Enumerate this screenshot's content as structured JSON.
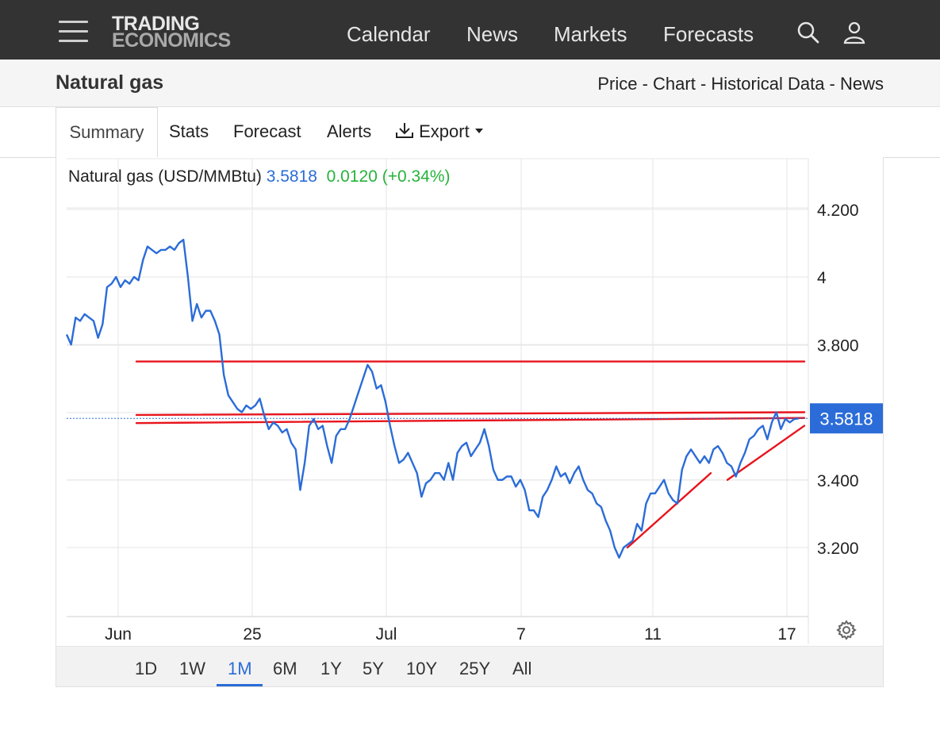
{
  "nav": {
    "logo_line1": "TRADING",
    "logo_line2": "ECONOMICS",
    "links": [
      "Calendar",
      "News",
      "Markets",
      "Forecasts"
    ]
  },
  "header": {
    "title": "Natural gas",
    "breadcrumb": "Price - Chart - Historical Data - News"
  },
  "tabs": {
    "summary": "Summary",
    "stats": "Stats",
    "forecast": "Forecast",
    "alerts": "Alerts",
    "export": "Export"
  },
  "quote": {
    "name": "Natural gas (USD/MMBtu)",
    "price": "3.5818",
    "change": "0.0120 (+0.34%)"
  },
  "ranges": [
    "1D",
    "1W",
    "1M",
    "6M",
    "1Y",
    "5Y",
    "10Y",
    "25Y",
    "All"
  ],
  "selected_range": "1M",
  "colors": {
    "line": "#2b6cd8",
    "trendline": "#e8141c",
    "positive": "#27b33c",
    "price_label_bg": "#2b6cd8"
  },
  "chart_data": {
    "type": "line",
    "title": "",
    "xlabel": "",
    "ylabel": "",
    "ylim": [
      3.0,
      4.3
    ],
    "yticks": [
      "4.200",
      "4",
      "3.800",
      "3.400",
      "3.200"
    ],
    "xticks": [
      "Jun",
      "25",
      "Jul",
      "7",
      "11",
      "17"
    ],
    "last_price_label": "3.5818",
    "grid": true,
    "series": [
      {
        "values": [
          3.83,
          3.8,
          3.88,
          3.87,
          3.89,
          3.88,
          3.87,
          3.82,
          3.86,
          3.97,
          3.98,
          4.0,
          3.97,
          3.99,
          3.98,
          4.0,
          3.99,
          4.05,
          4.09,
          4.08,
          4.07,
          4.08,
          4.08,
          4.09,
          4.08,
          4.1,
          4.11,
          4.0,
          3.87,
          3.92,
          3.88,
          3.9,
          3.9,
          3.87,
          3.83,
          3.71,
          3.65,
          3.63,
          3.61,
          3.6,
          3.62,
          3.61,
          3.62,
          3.64,
          3.59,
          3.55,
          3.57,
          3.56,
          3.54,
          3.55,
          3.51,
          3.49,
          3.37,
          3.45,
          3.56,
          3.58,
          3.55,
          3.56,
          3.5,
          3.45,
          3.53,
          3.55,
          3.55,
          3.58,
          3.62,
          3.66,
          3.7,
          3.74,
          3.72,
          3.67,
          3.68,
          3.63,
          3.56,
          3.5,
          3.45,
          3.46,
          3.48,
          3.45,
          3.42,
          3.35,
          3.39,
          3.4,
          3.42,
          3.42,
          3.4,
          3.45,
          3.4,
          3.48,
          3.5,
          3.51,
          3.47,
          3.49,
          3.51,
          3.55,
          3.5,
          3.43,
          3.4,
          3.4,
          3.41,
          3.41,
          3.38,
          3.4,
          3.37,
          3.31,
          3.31,
          3.29,
          3.35,
          3.37,
          3.4,
          3.44,
          3.41,
          3.42,
          3.39,
          3.42,
          3.44,
          3.4,
          3.37,
          3.36,
          3.33,
          3.32,
          3.28,
          3.25,
          3.2,
          3.17,
          3.2,
          3.21,
          3.22,
          3.27,
          3.25,
          3.33,
          3.36,
          3.36,
          3.38,
          3.4,
          3.36,
          3.34,
          3.33,
          3.43,
          3.47,
          3.49,
          3.47,
          3.45,
          3.47,
          3.45,
          3.49,
          3.5,
          3.48,
          3.45,
          3.44,
          3.41,
          3.45,
          3.48,
          3.52,
          3.53,
          3.55,
          3.56,
          3.52,
          3.57,
          3.6,
          3.55,
          3.58,
          3.57,
          3.58,
          3.5818
        ]
      }
    ],
    "trendlines": [
      {
        "from": [
          "Jun 5",
          3.75
        ],
        "to": [
          "Jul 17",
          3.75
        ]
      },
      {
        "from": [
          "Jun 5",
          3.592
        ],
        "to": [
          "Jul 17",
          3.6
        ]
      },
      {
        "from": [
          "Jun 5",
          3.568
        ],
        "to": [
          "Jul 17",
          3.583
        ]
      },
      {
        "from": [
          "Jul 10",
          3.2
        ],
        "to": [
          "Jul 12",
          3.42
        ]
      },
      {
        "from": [
          "Jul 14",
          3.4
        ],
        "to": [
          "Jul 17",
          3.56
        ]
      }
    ]
  }
}
